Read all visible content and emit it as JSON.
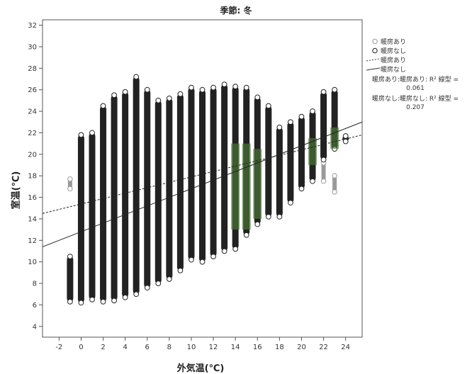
{
  "chart_data": {
    "type": "scatter",
    "title": "季節: 冬",
    "xlabel": "外気温(℃)",
    "ylabel": "室温(℃)",
    "xlim": [
      -3.5,
      25.5
    ],
    "ylim": [
      3,
      32.5
    ],
    "xticks": [
      -2,
      0,
      2,
      4,
      6,
      8,
      10,
      12,
      14,
      16,
      18,
      20,
      22,
      24
    ],
    "yticks": [
      4,
      6,
      8,
      10,
      12,
      14,
      16,
      18,
      20,
      22,
      24,
      26,
      28,
      30,
      32
    ],
    "grid": false,
    "legend_position": "right-top",
    "series": [
      {
        "name": "暖房あり",
        "marker": "open-circle",
        "color": "#9a9a9a",
        "columns": [
          {
            "x": -1,
            "min": 16.8,
            "max": 17.7
          },
          {
            "x": 0,
            "min": 14.5,
            "max": 21.0
          },
          {
            "x": 1,
            "min": 15.5,
            "max": 19.5
          },
          {
            "x": 22,
            "min": 17.5,
            "max": 19.2
          },
          {
            "x": 23,
            "min": 16.5,
            "max": 18.0
          }
        ]
      },
      {
        "name": "暖房なし",
        "marker": "open-circle",
        "color": "#222222",
        "columns": [
          {
            "x": -1,
            "min": 6.3,
            "max": 10.5
          },
          {
            "x": 0,
            "min": 6.2,
            "max": 21.8
          },
          {
            "x": 1,
            "min": 6.5,
            "max": 22.0
          },
          {
            "x": 2,
            "min": 6.3,
            "max": 24.5
          },
          {
            "x": 3,
            "min": 6.4,
            "max": 25.5
          },
          {
            "x": 4,
            "min": 6.7,
            "max": 25.8
          },
          {
            "x": 5,
            "min": 7.0,
            "max": 27.2
          },
          {
            "x": 6,
            "min": 7.6,
            "max": 26.0
          },
          {
            "x": 7,
            "min": 8.0,
            "max": 25.0
          },
          {
            "x": 8,
            "min": 8.4,
            "max": 25.2
          },
          {
            "x": 9,
            "min": 9.2,
            "max": 25.6
          },
          {
            "x": 10,
            "min": 10.2,
            "max": 26.2
          },
          {
            "x": 11,
            "min": 10.0,
            "max": 26.0
          },
          {
            "x": 12,
            "min": 10.5,
            "max": 26.2
          },
          {
            "x": 13,
            "min": 11.0,
            "max": 26.5
          },
          {
            "x": 14,
            "min": 11.2,
            "max": 26.3
          },
          {
            "x": 15,
            "min": 12.5,
            "max": 26.2
          },
          {
            "x": 16,
            "min": 13.5,
            "max": 25.3
          },
          {
            "x": 17,
            "min": 14.2,
            "max": 24.5
          },
          {
            "x": 18,
            "min": 14.2,
            "max": 22.5
          },
          {
            "x": 19,
            "min": 15.5,
            "max": 23.0
          },
          {
            "x": 20,
            "min": 16.8,
            "max": 23.5
          },
          {
            "x": 21,
            "min": 17.5,
            "max": 24.0
          },
          {
            "x": 22,
            "min": 19.5,
            "max": 25.8
          },
          {
            "x": 23,
            "min": 20.5,
            "max": 26.0
          },
          {
            "x": 24,
            "min": 21.2,
            "max": 21.7
          }
        ]
      }
    ],
    "highlight": {
      "color": "#4f7a3a",
      "columns": [
        {
          "x": 14,
          "min": 13.0,
          "max": 21.0
        },
        {
          "x": 15,
          "min": 13.0,
          "max": 21.0
        },
        {
          "x": 16,
          "min": 14.0,
          "max": 20.5
        },
        {
          "x": 21,
          "min": 19.0,
          "max": 21.5
        },
        {
          "x": 23,
          "min": 20.5,
          "max": 22.5
        }
      ]
    },
    "fit_lines": [
      {
        "name": "暖房あり",
        "style": "dashed",
        "x": [
          -3.5,
          25.5
        ],
        "y": [
          14.5,
          21.8
        ]
      },
      {
        "name": "暖房なし",
        "style": "solid",
        "x": [
          -3.5,
          25.5
        ],
        "y": [
          11.4,
          23.0
        ]
      }
    ],
    "legend": {
      "entries": [
        {
          "label": "暖房あり",
          "symbol": "circle-light"
        },
        {
          "label": "暖房なし",
          "symbol": "circle"
        },
        {
          "label": "暖房あり",
          "symbol": "dashed-line"
        },
        {
          "label": "暖房なし",
          "symbol": "solid-line"
        }
      ],
      "fit_texts": [
        {
          "line1": "暖房あり:暖房あり: R² 線型 =",
          "line2": "0.061"
        },
        {
          "line1": "暖房なし:暖房なし: R² 線型 =",
          "line2": "0.207"
        }
      ]
    }
  }
}
